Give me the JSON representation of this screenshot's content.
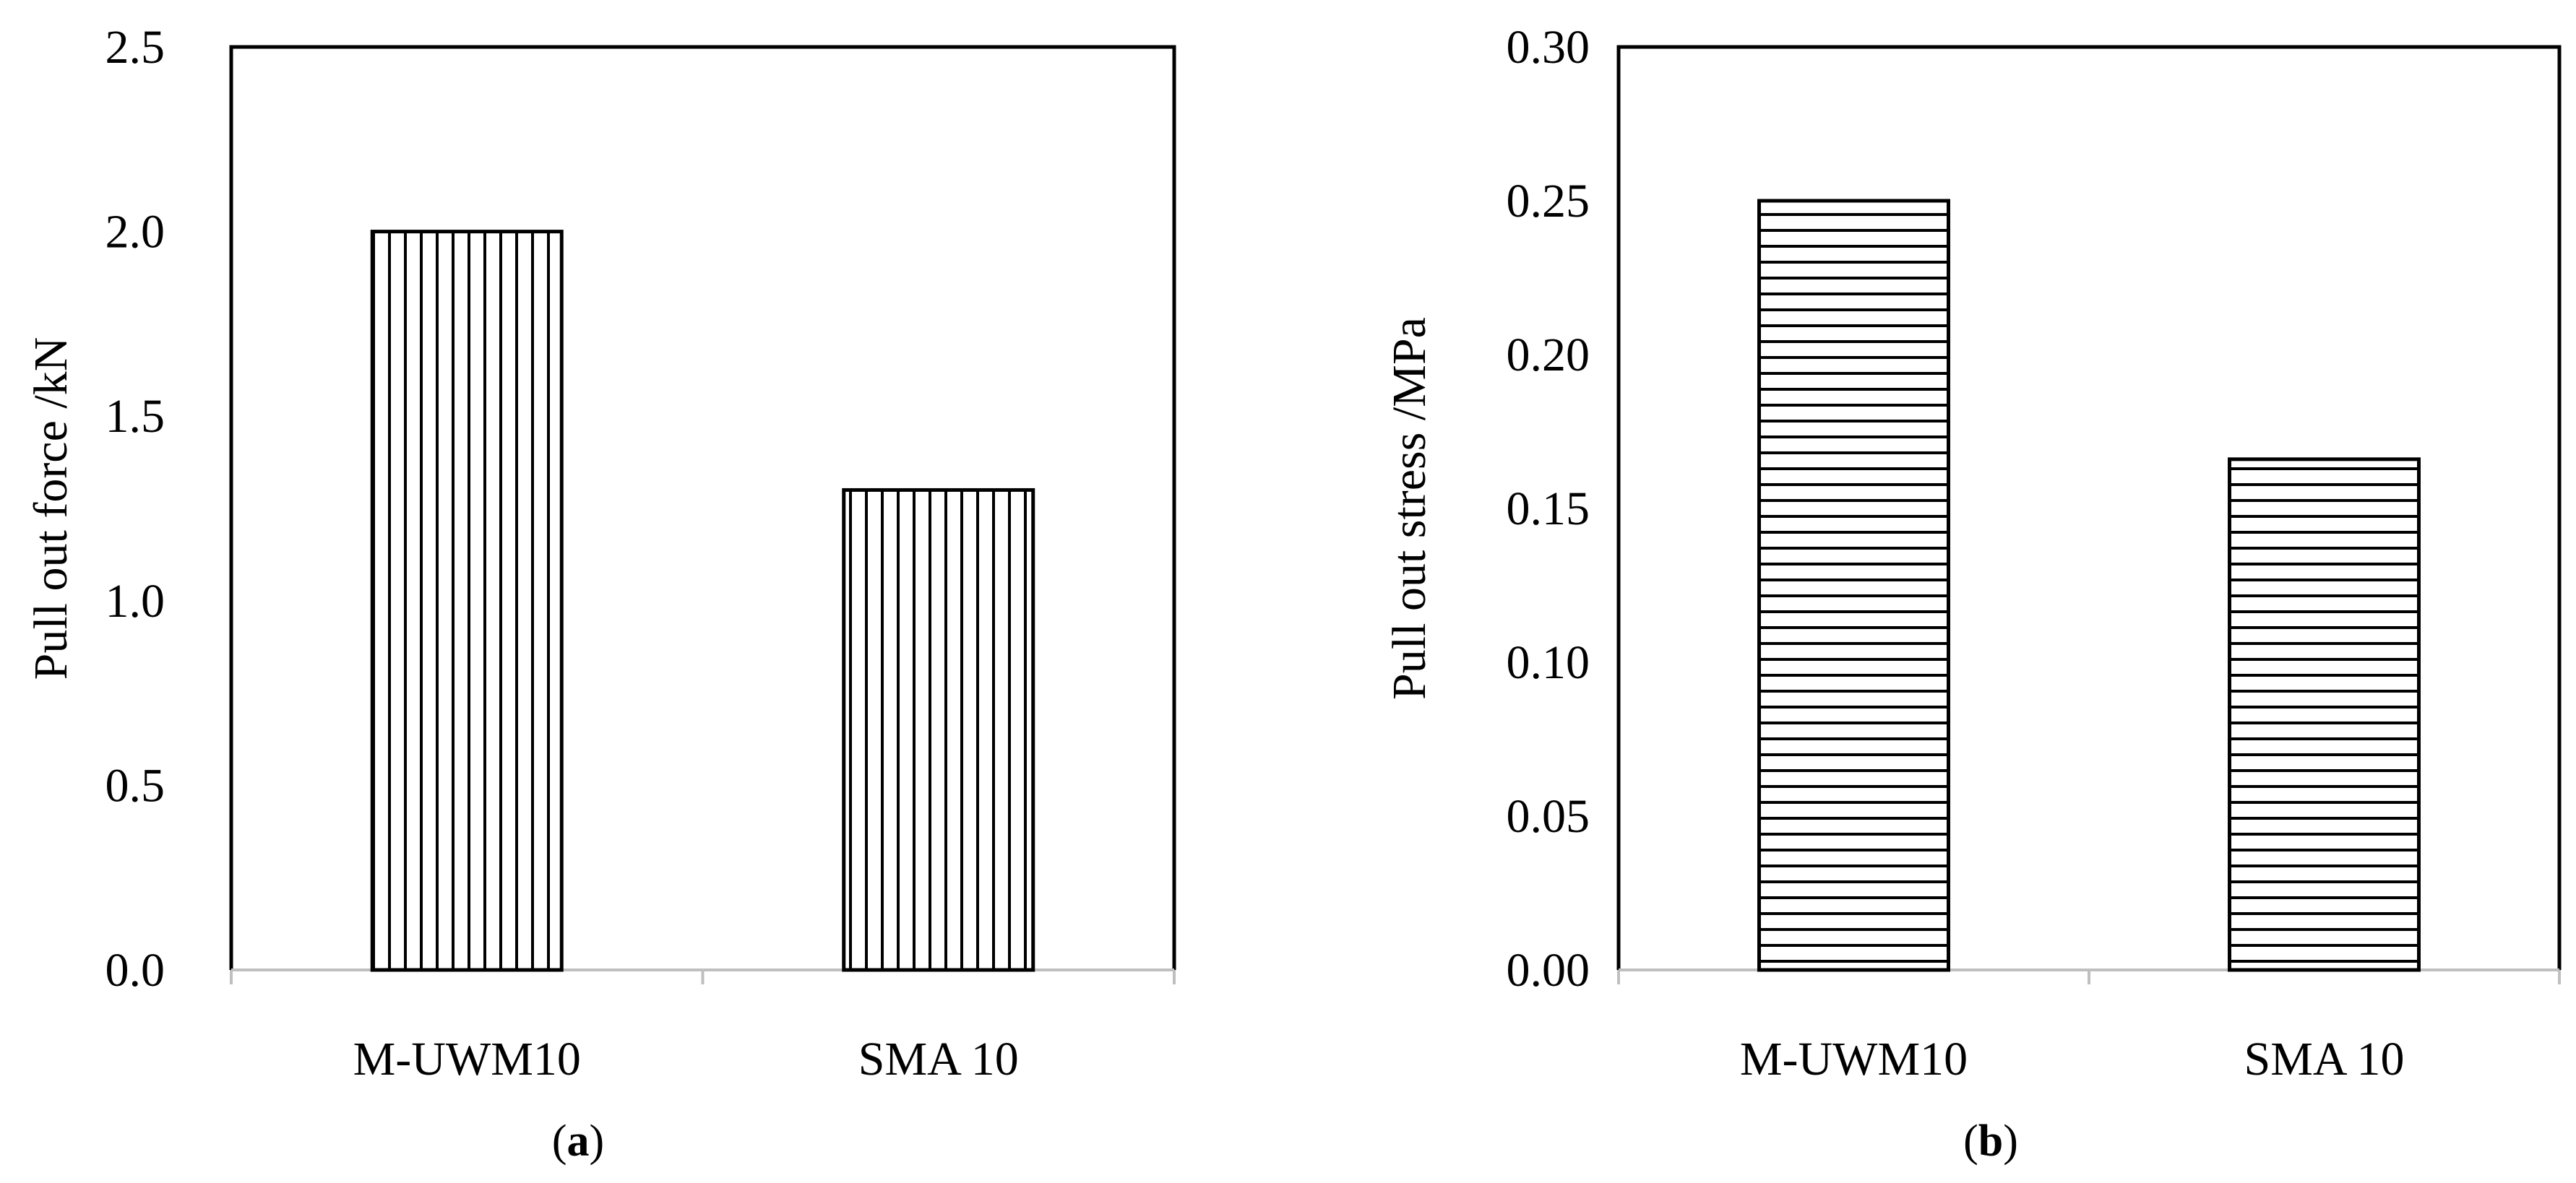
{
  "chart_data": [
    {
      "type": "bar",
      "panel_label": "a",
      "categories": [
        "M-UWM10",
        "SMA 10"
      ],
      "values": [
        2.0,
        1.3
      ],
      "ylabel": "Pull out force /kN",
      "ylim": [
        0,
        2.5
      ],
      "yticks": [
        "0.0",
        "0.5",
        "1.0",
        "1.5",
        "2.0",
        "2.5"
      ],
      "ytick_values": [
        0,
        0.5,
        1.0,
        1.5,
        2.0,
        2.5
      ],
      "pattern": "vertical-hatch",
      "grid": false
    },
    {
      "type": "bar",
      "panel_label": "b",
      "categories": [
        "M-UWM10",
        "SMA 10"
      ],
      "values": [
        0.25,
        0.166
      ],
      "ylabel": "Pull out stress /MPa",
      "ylim": [
        0,
        0.3
      ],
      "yticks": [
        "0.00",
        "0.05",
        "0.10",
        "0.15",
        "0.20",
        "0.25",
        "0.30"
      ],
      "ytick_values": [
        0,
        0.05,
        0.1,
        0.15,
        0.2,
        0.25,
        0.3
      ],
      "pattern": "horizontal-hatch",
      "grid": false
    }
  ]
}
